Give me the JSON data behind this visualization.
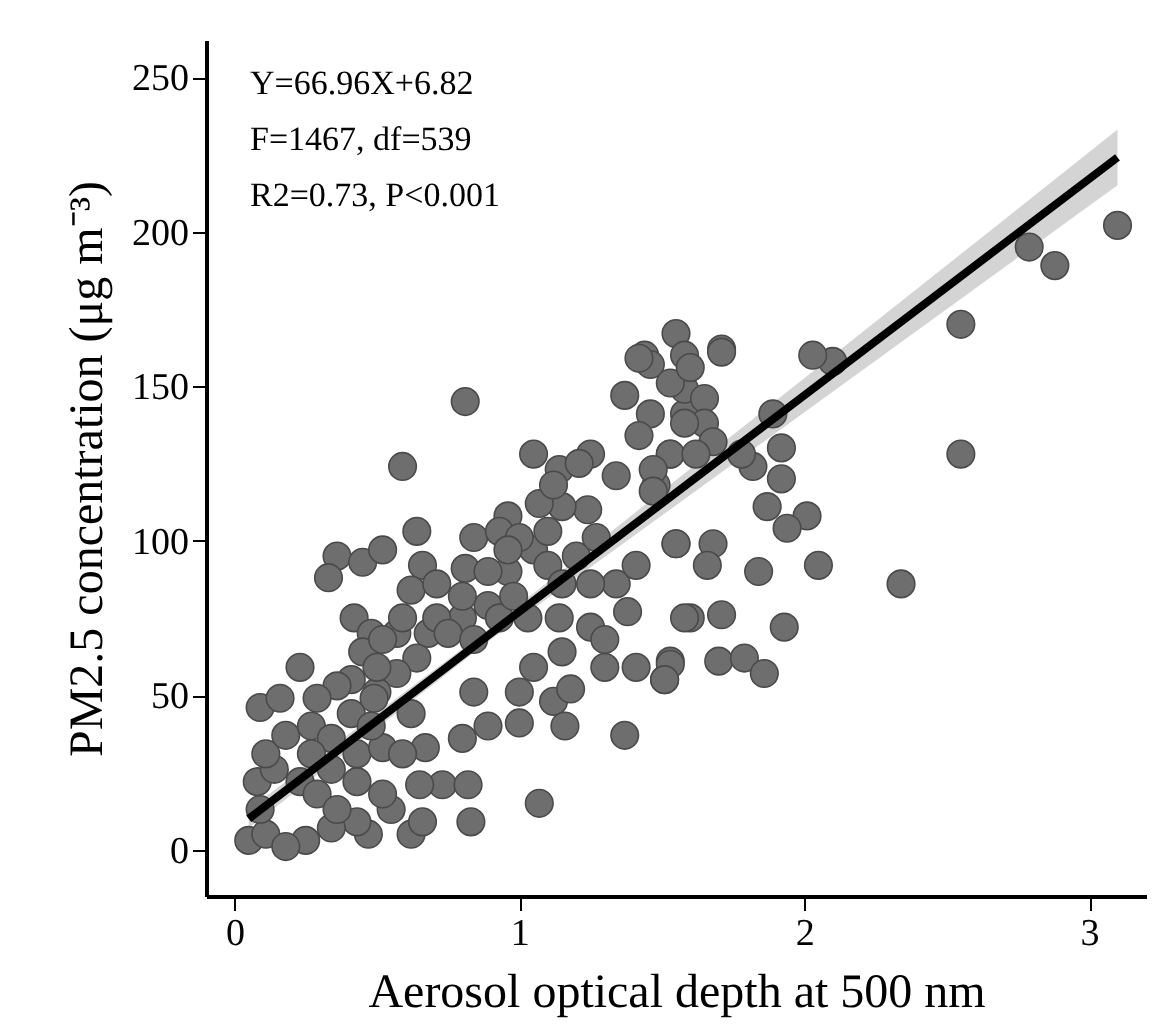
{
  "chart_data": {
    "type": "scatter",
    "xlabel": "Aerosol optical depth at 500 nm",
    "ylabel": "PM2.5 concentration (μg m⁻³)",
    "annotations": [
      "Y=66.96X+6.82",
      "F=1467, df=539",
      "R2=0.73, P<0.001"
    ],
    "xlim": [
      -0.1,
      3.2
    ],
    "ylim": [
      -15,
      262
    ],
    "xticks": [
      0,
      1,
      2,
      3
    ],
    "yticks": [
      0,
      50,
      100,
      150,
      200,
      250
    ],
    "grid": false,
    "series": [
      {
        "type": "scatter",
        "color": "#6e6e6e",
        "marker": "circle",
        "x": [
          3.1,
          2.79,
          2.88,
          2.55,
          2.55,
          2.34,
          2.01,
          1.94,
          1.87,
          2.05,
          1.84,
          1.93,
          1.71,
          1.6,
          1.55,
          1.68,
          1.66,
          1.7,
          1.79,
          1.86,
          1.51,
          1.53,
          1.92,
          1.89,
          1.92,
          1.82,
          2.1,
          2.03,
          1.55,
          1.71,
          1.44,
          1.46,
          1.58,
          0.81,
          0.59,
          0.36,
          0.33,
          0.45,
          0.52,
          0.64,
          0.66,
          0.23,
          0.09,
          0.16,
          0.42,
          0.48,
          0.81,
          0.84,
          0.96,
          1.05,
          1.14,
          1.25,
          1.34,
          1.24,
          1.15,
          1.05,
          0.96,
          0.89,
          0.8,
          0.68,
          0.64,
          0.57,
          0.5,
          0.41,
          0.84,
          0.89,
          0.8,
          0.67,
          1.0,
          1.0,
          1.12,
          1.16,
          1.18,
          1.37,
          1.05,
          1.15,
          1.14,
          1.25,
          1.3,
          1.38,
          1.3,
          1.41,
          1.53,
          1.51,
          1.34,
          1.41,
          1.25,
          1.2,
          1.27,
          1.55,
          1.58,
          1.42,
          1.37,
          1.46,
          1.42,
          1.53,
          1.48,
          1.58,
          1.58,
          1.07,
          0.83,
          0.62,
          0.66,
          0.73,
          0.82,
          0.65,
          0.55,
          0.47,
          0.43,
          0.34,
          0.25,
          0.05,
          0.11,
          0.18,
          0.09,
          0.08,
          0.14,
          0.23,
          0.29,
          0.36,
          0.43,
          0.52,
          0.11,
          0.18,
          0.27,
          0.34,
          0.43,
          0.41,
          0.49,
          0.52,
          0.62,
          0.59,
          0.48,
          0.34,
          0.27,
          0.62,
          0.71,
          0.8,
          0.71,
          0.57,
          0.75,
          0.89,
          0.84,
          0.93,
          0.98,
          1.03,
          0.93,
          1.0,
          0.96,
          1.1,
          1.07,
          1.12,
          1.21,
          1.1,
          1.15,
          0.45,
          0.52,
          0.59,
          0.5,
          0.36,
          0.29,
          1.53,
          1.6,
          1.65,
          1.65,
          1.58,
          1.68,
          1.53,
          1.62,
          1.47,
          1.47,
          1.78,
          1.71
        ],
        "values": [
          202,
          195,
          189,
          170,
          128,
          86,
          108,
          104,
          111,
          92,
          90,
          72,
          76,
          75,
          99,
          99,
          92,
          61,
          62,
          57,
          55,
          61,
          130,
          141,
          120,
          124,
          158,
          160,
          167,
          162,
          160,
          157,
          160,
          145,
          124,
          95,
          88,
          93,
          97,
          103,
          92,
          59,
          46,
          49,
          75,
          70,
          91,
          101,
          108,
          128,
          123,
          128,
          121,
          110,
          111,
          97,
          90,
          79,
          75,
          70,
          62,
          57,
          51,
          55,
          51,
          40,
          36,
          33,
          51,
          41,
          48,
          40,
          52,
          37,
          59,
          64,
          75,
          72,
          68,
          77,
          59,
          59,
          60,
          55,
          86,
          92,
          86,
          95,
          101,
          99,
          75,
          159,
          147,
          141,
          134,
          128,
          118,
          141,
          149,
          15,
          9,
          5,
          9,
          21,
          21,
          21,
          13,
          5,
          9,
          7,
          3,
          3,
          5,
          1,
          13,
          22,
          26,
          22,
          18,
          13,
          22,
          18,
          31,
          37,
          40,
          36,
          31,
          44,
          49,
          33,
          44,
          31,
          40,
          26,
          31,
          84,
          86,
          82,
          75,
          70,
          70,
          90,
          68,
          75,
          82,
          75,
          103,
          101,
          97,
          103,
          112,
          118,
          125,
          92,
          86,
          64,
          68,
          75,
          59,
          53,
          49,
          151,
          156,
          146,
          138,
          138,
          132,
          128,
          128,
          123,
          116,
          128,
          161
        ]
      },
      {
        "type": "line",
        "color": "#000000",
        "marker": "none",
        "x": [
          0.05,
          0.9,
          3.1
        ],
        "values": [
          10,
          70,
          224
        ],
        "lower": [
          7,
          68,
          215
        ],
        "upper": [
          13,
          72,
          233
        ]
      }
    ]
  }
}
